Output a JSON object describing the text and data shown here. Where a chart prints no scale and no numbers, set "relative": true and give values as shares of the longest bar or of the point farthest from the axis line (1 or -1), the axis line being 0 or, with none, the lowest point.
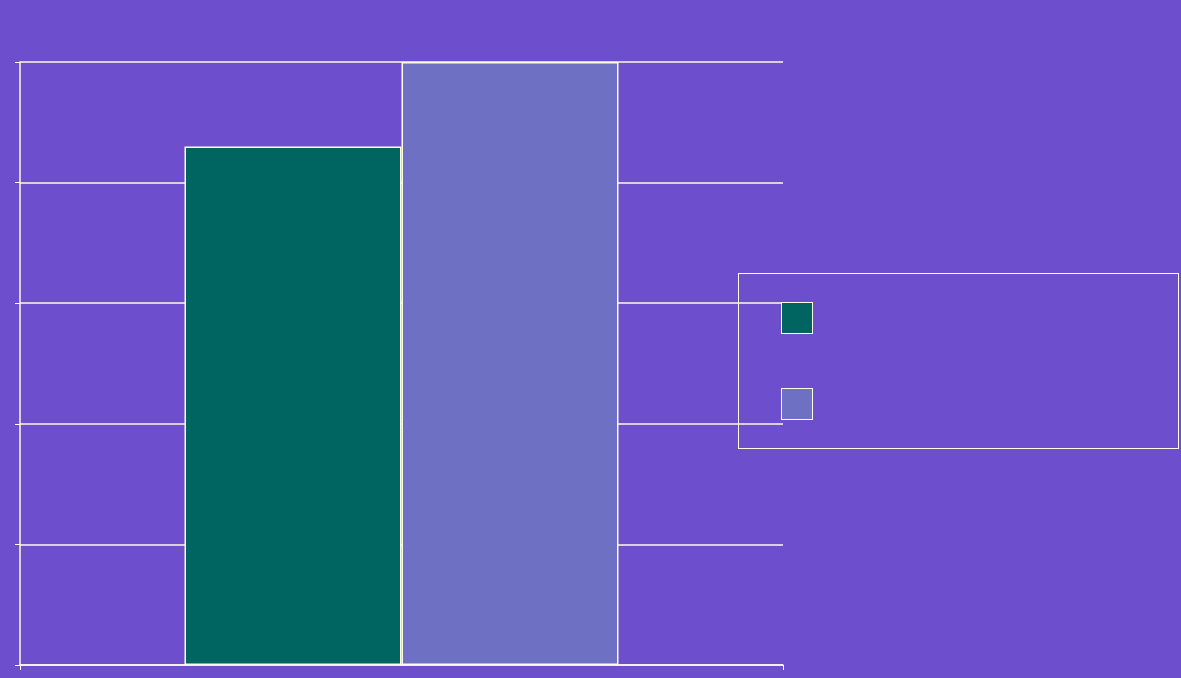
{
  "chart_data": {
    "type": "bar",
    "relative": true,
    "categories": [
      null
    ],
    "series": [
      {
        "color": "#006461",
        "values": [
          0.86
        ]
      },
      {
        "color": "#6e70c4",
        "values": [
          1
        ]
      }
    ],
    "grid": "y"
  }
}
